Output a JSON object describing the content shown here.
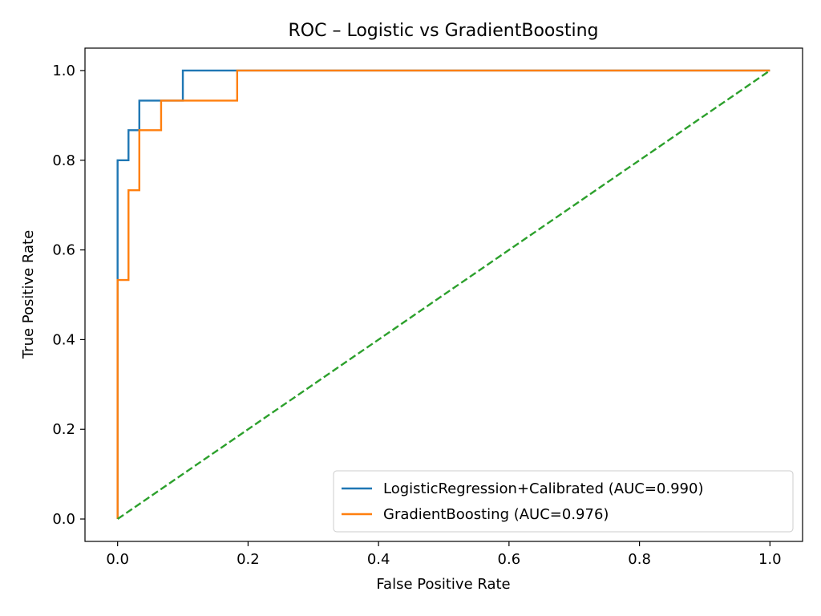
{
  "chart_data": {
    "type": "line",
    "title": "ROC – Logistic vs GradientBoosting",
    "xlabel": "False Positive Rate",
    "ylabel": "True Positive Rate",
    "xlim": [
      -0.05,
      1.05
    ],
    "ylim": [
      -0.05,
      1.05
    ],
    "xticks": [
      "0.0",
      "0.2",
      "0.4",
      "0.6",
      "0.8",
      "1.0"
    ],
    "yticks": [
      "0.0",
      "0.2",
      "0.4",
      "0.6",
      "0.8",
      "1.0"
    ],
    "grid": false,
    "legend_position": "lower-right",
    "series": [
      {
        "name": "LogisticRegression+Calibrated (AUC=0.990)",
        "color": "#1f77b4",
        "linestyle": "solid",
        "x": [
          0.0,
          0.0,
          0.0,
          0.0167,
          0.0167,
          0.0333,
          0.0333,
          0.1,
          0.1,
          1.0
        ],
        "y": [
          0.0,
          0.533,
          0.8,
          0.8,
          0.867,
          0.867,
          0.933,
          0.933,
          1.0,
          1.0
        ]
      },
      {
        "name": "GradientBoosting (AUC=0.976)",
        "color": "#ff7f0e",
        "linestyle": "solid",
        "x": [
          0.0,
          0.0,
          0.0167,
          0.0167,
          0.0333,
          0.0333,
          0.0667,
          0.0667,
          0.1833,
          0.1833,
          1.0
        ],
        "y": [
          0.0,
          0.533,
          0.533,
          0.733,
          0.733,
          0.867,
          0.867,
          0.933,
          0.933,
          1.0,
          1.0
        ]
      },
      {
        "color": "#2ca02c",
        "linestyle": "dashed",
        "x": [
          0.0,
          1.0
        ],
        "y": [
          0.0,
          1.0
        ]
      }
    ]
  }
}
